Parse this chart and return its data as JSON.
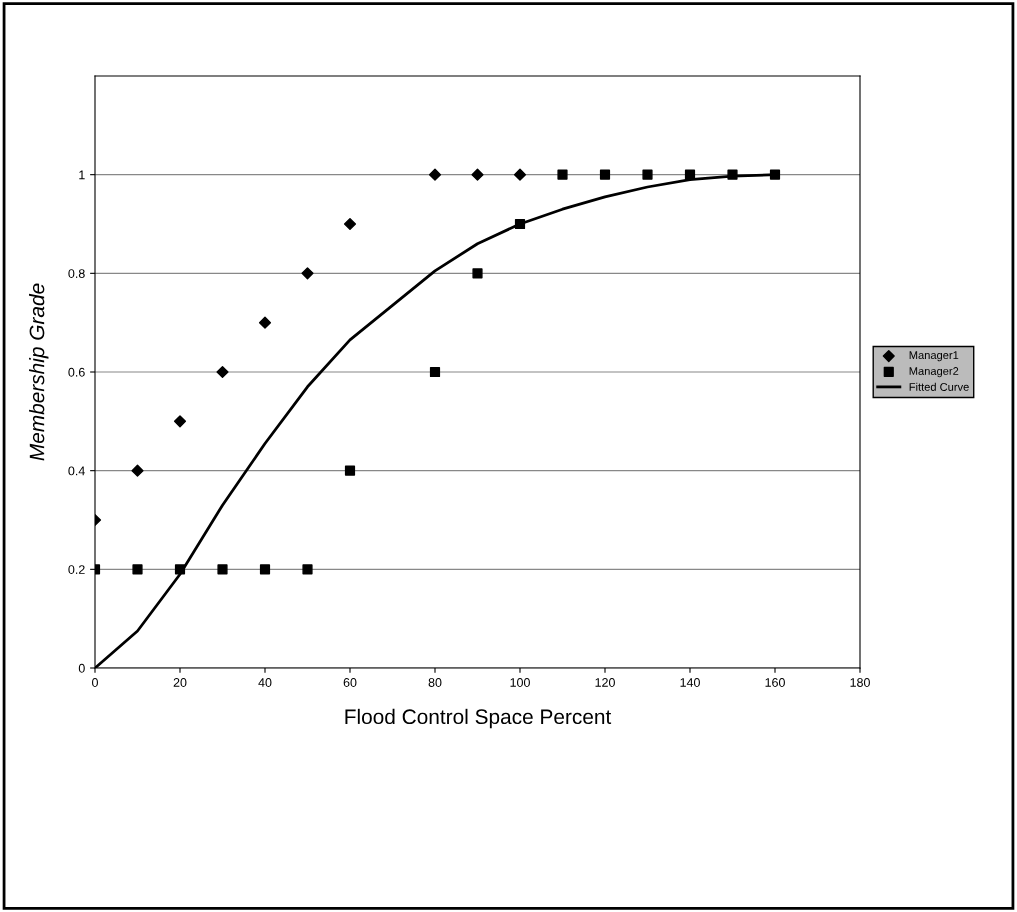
{
  "chart_data": {
    "type": "scatter",
    "xlabel": "Flood Control Space Percent",
    "ylabel": "Membership Grade",
    "xlim": [
      0,
      180
    ],
    "xticks": [
      0,
      20,
      40,
      60,
      80,
      100,
      120,
      140,
      160,
      180
    ],
    "ylim": [
      0,
      1.2
    ],
    "yticks": [
      0,
      0.2,
      0.4,
      0.6,
      0.8,
      1
    ],
    "grid": "y",
    "legend": "right",
    "series": [
      {
        "name": "Manager1",
        "color": "#000000",
        "marker": "diamond",
        "x": [
          0,
          10,
          20,
          30,
          40,
          50,
          60,
          80,
          90,
          100
        ],
        "values": [
          0.3,
          0.4,
          0.5,
          0.6,
          0.7,
          0.8,
          0.9,
          1,
          1,
          1
        ]
      },
      {
        "name": "Manager2",
        "color": "#000000",
        "marker": "square",
        "x": [
          0,
          10,
          20,
          30,
          40,
          50,
          60,
          80,
          90,
          100,
          110,
          120,
          130,
          140,
          150,
          160
        ],
        "values": [
          0.2,
          0.2,
          0.2,
          0.2,
          0.2,
          0.2,
          0.4,
          0.6,
          0.8,
          0.9,
          1,
          1,
          1,
          1,
          1,
          1
        ]
      },
      {
        "name": "Fitted Curve",
        "type": "line",
        "color": "#000000",
        "marker": "none",
        "line_style": "solid",
        "x": [
          0,
          10,
          20,
          30,
          40,
          50,
          60,
          70,
          80,
          90,
          100,
          110,
          120,
          130,
          140,
          150,
          160
        ],
        "values": [
          0,
          0.075,
          0.19,
          0.33,
          0.455,
          0.57,
          0.665,
          0.735,
          0.805,
          0.86,
          0.9,
          0.93,
          0.955,
          0.975,
          0.99,
          0.997,
          1
        ]
      }
    ]
  }
}
